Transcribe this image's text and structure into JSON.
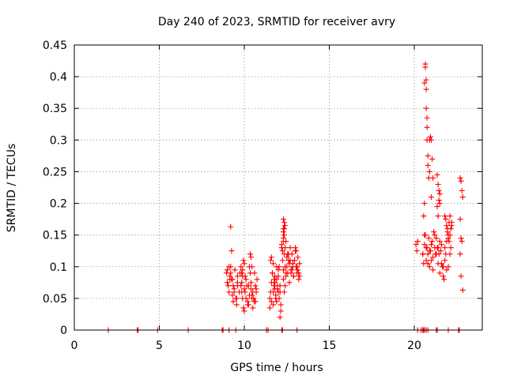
{
  "chart_data": {
    "type": "scatter",
    "title": "Day 240 of 2023, SRMTID for receiver avry",
    "xlabel": "GPS time / hours",
    "ylabel": "SRMTID / TECUs",
    "xlim": [
      0,
      24
    ],
    "ylim": [
      0,
      0.45
    ],
    "xticks": [
      0,
      5,
      10,
      15,
      20
    ],
    "yticks": [
      0,
      0.05,
      0.1,
      0.15,
      0.2,
      0.25,
      0.3,
      0.35,
      0.4,
      0.45
    ],
    "xtick_labels": [
      "0",
      "5",
      "10",
      "15",
      "20"
    ],
    "ytick_labels": [
      "0",
      "0.05",
      "0.1",
      "0.15",
      "0.2",
      "0.25",
      "0.3",
      "0.35",
      "0.4",
      "0.45"
    ],
    "grid": true,
    "marker": "+",
    "color": "#ff0000",
    "series": [
      {
        "name": "SRMTID",
        "x": [
          2.0,
          3.7,
          3.75,
          4.9,
          6.7,
          8.7,
          8.75,
          9.1,
          9.5,
          11.3,
          11.4,
          12.2,
          12.25,
          13.1,
          20.2,
          20.4,
          20.5,
          20.55,
          20.6,
          20.7,
          20.8,
          21.3,
          21.35,
          22.0,
          22.6,
          22.65,
          8.95,
          9.0,
          9.05,
          9.1,
          9.15,
          9.2,
          9.25,
          9.3,
          9.35,
          9.4,
          9.45,
          9.5,
          9.55,
          9.6,
          9.7,
          9.75,
          9.8,
          9.85,
          9.9,
          9.95,
          10.0,
          10.05,
          10.1,
          10.15,
          10.2,
          10.25,
          10.3,
          10.35,
          10.4,
          10.45,
          10.5,
          10.55,
          10.6,
          10.65,
          10.7,
          10.75,
          9.0,
          9.1,
          9.2,
          9.3,
          9.4,
          9.6,
          9.8,
          9.9,
          10.0,
          10.1,
          10.2,
          10.3,
          10.4,
          10.5,
          10.6,
          10.7,
          9.15,
          9.35,
          9.55,
          9.85,
          10.05,
          10.25,
          10.45,
          10.65,
          9.2,
          9.25,
          9.95,
          10.0,
          10.35,
          10.4,
          10.45,
          9.85,
          9.9,
          9.6,
          11.5,
          11.55,
          11.6,
          11.65,
          11.7,
          11.75,
          11.8,
          11.85,
          11.9,
          11.95,
          12.0,
          12.05,
          12.1,
          12.15,
          11.5,
          11.6,
          11.7,
          11.8,
          11.9,
          12.0,
          12.1,
          11.55,
          11.65,
          11.75,
          11.85,
          11.95,
          12.05,
          12.15,
          11.6,
          11.8,
          12.0,
          11.7,
          11.9,
          12.1,
          12.2,
          12.25,
          12.3,
          12.35,
          12.4,
          12.45,
          12.5,
          12.55,
          12.6,
          12.65,
          12.7,
          12.75,
          12.8,
          12.85,
          12.9,
          12.95,
          13.0,
          13.05,
          13.1,
          13.15,
          13.2,
          13.25,
          12.3,
          12.4,
          12.5,
          12.6,
          12.7,
          12.8,
          12.9,
          13.0,
          13.1,
          13.2,
          12.35,
          12.45,
          12.55,
          12.65,
          12.75,
          12.85,
          12.95,
          13.05,
          13.15,
          13.25,
          12.3,
          12.3,
          12.35,
          12.35,
          12.3,
          12.4,
          12.3,
          12.35,
          12.2,
          12.25,
          12.4,
          12.45,
          12.3,
          20.1,
          20.15,
          20.2,
          20.5,
          20.55,
          20.6,
          20.65,
          20.7,
          20.75,
          20.8,
          20.85,
          20.9,
          20.95,
          21.0,
          21.05,
          21.1,
          21.15,
          21.2,
          21.25,
          21.3,
          21.35,
          21.4,
          21.45,
          21.5,
          21.55,
          21.6,
          21.65,
          21.7,
          21.75,
          21.8,
          21.85,
          21.9,
          21.95,
          22.0,
          22.05,
          22.1,
          22.15,
          22.2,
          20.5,
          20.6,
          20.7,
          20.8,
          20.9,
          21.0,
          21.1,
          21.2,
          21.3,
          21.4,
          21.5,
          21.6,
          21.7,
          21.8,
          21.9,
          22.0,
          22.1,
          20.6,
          20.65,
          20.65,
          20.7,
          20.7,
          20.7,
          20.75,
          20.75,
          20.75,
          20.8,
          20.8,
          20.85,
          20.6,
          20.55,
          20.9,
          20.95,
          21.0,
          21.05,
          21.1,
          20.9,
          21.0,
          21.35,
          21.4,
          21.45,
          21.5,
          21.35,
          21.4,
          21.5,
          21.45,
          21.85,
          21.9,
          21.95,
          22.0,
          22.05,
          22.1,
          22.15,
          21.8,
          22.2,
          22.7,
          22.75,
          22.8,
          22.85,
          22.7,
          22.75,
          22.8,
          22.7,
          22.75,
          22.85
        ],
        "y": [
          0,
          0,
          0,
          0,
          0,
          0,
          0,
          0,
          0,
          0,
          0,
          0,
          0,
          0,
          0,
          0,
          0,
          0,
          0,
          0,
          0,
          0,
          0,
          0,
          0,
          0,
          0.09,
          0.075,
          0.07,
          0.06,
          0.085,
          0.1,
          0.08,
          0.055,
          0.045,
          0.065,
          0.095,
          0.05,
          0.04,
          0.07,
          0.06,
          0.09,
          0.1,
          0.075,
          0.05,
          0.035,
          0.03,
          0.06,
          0.08,
          0.07,
          0.045,
          0.04,
          0.1,
          0.09,
          0.065,
          0.055,
          0.035,
          0.05,
          0.09,
          0.07,
          0.06,
          0.08,
          0.095,
          0.1,
          0.09,
          0.08,
          0.06,
          0.085,
          0.07,
          0.095,
          0.065,
          0.05,
          0.04,
          0.055,
          0.075,
          0.06,
          0.045,
          0.065,
          0.08,
          0.07,
          0.05,
          0.06,
          0.085,
          0.07,
          0.05,
          0.045,
          0.163,
          0.125,
          0.11,
          0.105,
          0.12,
          0.115,
          0.1,
          0.09,
          0.085,
          0.075,
          0.05,
          0.06,
          0.075,
          0.09,
          0.105,
          0.08,
          0.065,
          0.05,
          0.045,
          0.07,
          0.085,
          0.1,
          0.06,
          0.04,
          0.035,
          0.045,
          0.06,
          0.075,
          0.08,
          0.095,
          0.07,
          0.11,
          0.09,
          0.07,
          0.055,
          0.065,
          0.05,
          0.03,
          0.115,
          0.085,
          0.06,
          0.04,
          0.1,
          0.02,
          0.13,
          0.11,
          0.095,
          0.12,
          0.1,
          0.085,
          0.115,
          0.09,
          0.11,
          0.105,
          0.13,
          0.09,
          0.12,
          0.1,
          0.085,
          0.11,
          0.125,
          0.1,
          0.09,
          0.115,
          0.08,
          0.105,
          0.08,
          0.07,
          0.1,
          0.12,
          0.11,
          0.095,
          0.085,
          0.13,
          0.1,
          0.09,
          0.06,
          0.09,
          0.12,
          0.075,
          0.095,
          0.105,
          0.11,
          0.125,
          0.095,
          0.085,
          0.145,
          0.155,
          0.17,
          0.16,
          0.175,
          0.165,
          0.14,
          0.15,
          0.135,
          0.125,
          0.13,
          0.14,
          0.16,
          0.135,
          0.125,
          0.14,
          0.12,
          0.105,
          0.135,
          0.15,
          0.11,
          0.13,
          0.12,
          0.145,
          0.1,
          0.125,
          0.135,
          0.14,
          0.115,
          0.155,
          0.13,
          0.12,
          0.145,
          0.13,
          0.105,
          0.12,
          0.14,
          0.125,
          0.135,
          0.1,
          0.085,
          0.08,
          0.11,
          0.12,
          0.14,
          0.16,
          0.15,
          0.17,
          0.18,
          0.13,
          0.165,
          0.12,
          0.15,
          0.13,
          0.105,
          0.125,
          0.11,
          0.095,
          0.15,
          0.12,
          0.13,
          0.09,
          0.105,
          0.1,
          0.13,
          0.095,
          0.1,
          0.12,
          0.39,
          0.415,
          0.42,
          0.38,
          0.395,
          0.35,
          0.335,
          0.32,
          0.3,
          0.275,
          0.26,
          0.24,
          0.2,
          0.18,
          0.3,
          0.305,
          0.3,
          0.27,
          0.24,
          0.25,
          0.21,
          0.245,
          0.23,
          0.22,
          0.2,
          0.195,
          0.18,
          0.215,
          0.205,
          0.175,
          0.165,
          0.155,
          0.145,
          0.14,
          0.15,
          0.16,
          0.18,
          0.17,
          0.24,
          0.235,
          0.22,
          0.21,
          0.175,
          0.145,
          0.14,
          0.12,
          0.085,
          0.063
        ]
      }
    ]
  }
}
